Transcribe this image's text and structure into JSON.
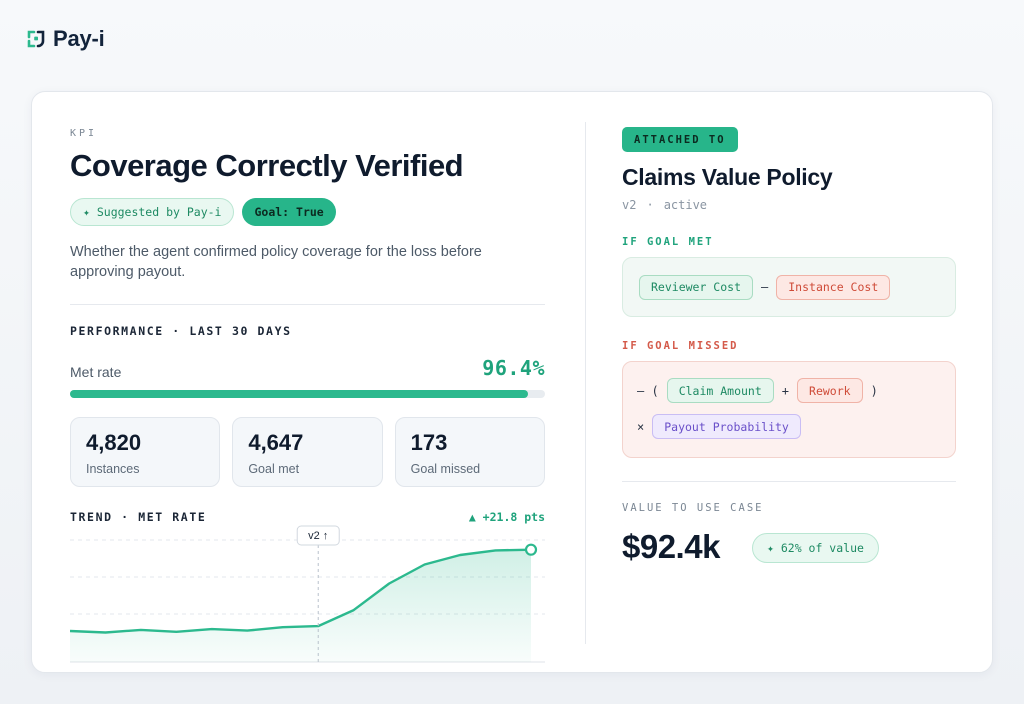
{
  "brand": {
    "name": "Pay-i",
    "color": "#2cb98e"
  },
  "kpi": {
    "kicker": "KPI",
    "title": "Coverage Correctly Verified",
    "suggested_pill": "✦ Suggested by Pay-i",
    "goal_pill": "Goal: True",
    "description": "Whether the agent confirmed policy coverage for the loss before approving payout."
  },
  "performance": {
    "label": "PERFORMANCE · LAST 30 DAYS",
    "met_rate_label": "Met rate",
    "met_rate_value": "96.4%",
    "met_rate_fraction": 0.964,
    "stats": [
      {
        "value": "4,820",
        "label": "Instances"
      },
      {
        "value": "4,647",
        "label": "Goal met"
      },
      {
        "value": "173",
        "label": "Goal missed"
      }
    ]
  },
  "trend": {
    "label": "TREND · MET RATE",
    "delta": "▲ +21.8 pts",
    "marker_label": "v2 ↑"
  },
  "chart_data": {
    "type": "area",
    "series": [
      {
        "values": [
          75.0,
          74.6,
          75.3,
          74.8,
          75.5,
          75.1,
          76.0,
          76.3,
          80.5,
          87.5,
          92.5,
          95.0,
          96.2,
          96.4
        ]
      }
    ],
    "ylim": [
      70,
      100
    ],
    "marker_index": 7,
    "grid": "horizontal dashed",
    "color": "#2cb98e"
  },
  "policy": {
    "attached_label": "ATTACHED TO",
    "title": "Claims Value Policy",
    "version": "v2",
    "dot": "·",
    "status": "active",
    "if_met_label": "IF GOAL MET",
    "if_met": {
      "a": "Reviewer Cost",
      "op": "–",
      "b": "Instance Cost"
    },
    "if_missed_label": "IF GOAL MISSED",
    "if_missed": {
      "neg": "– (",
      "a": "Claim Amount",
      "plus": "+",
      "b": "Rework",
      "close": ")",
      "times": "×",
      "c": "Payout Probability"
    },
    "value_label": "VALUE TO USE CASE",
    "value_amount": "$92.4k",
    "value_pill": "✦ 62% of value"
  }
}
